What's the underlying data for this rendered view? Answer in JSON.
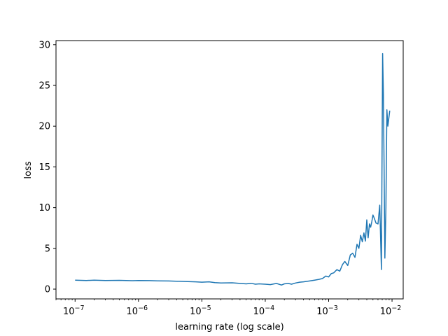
{
  "chart_data": {
    "type": "line",
    "title": "",
    "xlabel": "learning rate (log scale)",
    "ylabel": "loss",
    "x_scale": "log",
    "xlim": [
      5e-08,
      0.015
    ],
    "ylim": [
      -1.2,
      30.5
    ],
    "grid": false,
    "x_ticks": [
      {
        "value": 1e-07,
        "base": "10",
        "exp": "−7"
      },
      {
        "value": 1e-06,
        "base": "10",
        "exp": "−6"
      },
      {
        "value": 1e-05,
        "base": "10",
        "exp": "−5"
      },
      {
        "value": 0.0001,
        "base": "10",
        "exp": "−4"
      },
      {
        "value": 0.001,
        "base": "10",
        "exp": "−3"
      },
      {
        "value": 0.01,
        "base": "10",
        "exp": "−2"
      }
    ],
    "y_ticks": [
      0,
      5,
      10,
      15,
      20,
      25,
      30
    ],
    "color": "#1f77b4",
    "series": [
      {
        "x": [
          1e-07,
          1.5e-07,
          2e-07,
          3e-07,
          5e-07,
          8e-07,
          1e-06,
          1.5e-06,
          2e-06,
          3e-06,
          5e-06,
          8e-06,
          1e-05,
          1.3e-05,
          1.6e-05,
          2e-05,
          3e-05,
          4e-05,
          5e-05,
          6e-05,
          7e-05,
          8e-05,
          0.0001,
          0.00012,
          0.00015,
          0.00018,
          0.0002,
          0.00023,
          0.00026,
          0.0003,
          0.00035,
          0.0004,
          0.0005,
          0.0006,
          0.0007,
          0.0008,
          0.0009,
          0.001,
          0.0011,
          0.0012,
          0.00135,
          0.0015,
          0.00165,
          0.0018,
          0.002,
          0.0022,
          0.0024,
          0.0026,
          0.0028,
          0.003,
          0.0032,
          0.0034,
          0.0036,
          0.0038,
          0.004,
          0.0042,
          0.0044,
          0.0046,
          0.0048,
          0.005,
          0.0053,
          0.0056,
          0.006,
          0.0064,
          0.0068,
          0.0071,
          0.0073,
          0.0075,
          0.0077,
          0.008,
          0.0083,
          0.0086,
          0.0089,
          0.0092
        ],
        "y": [
          1.1,
          1.05,
          1.1,
          1.05,
          1.08,
          1.03,
          1.06,
          1.04,
          1.02,
          1.0,
          0.95,
          0.9,
          0.85,
          0.9,
          0.8,
          0.75,
          0.78,
          0.7,
          0.65,
          0.72,
          0.6,
          0.65,
          0.6,
          0.55,
          0.7,
          0.5,
          0.65,
          0.7,
          0.6,
          0.75,
          0.85,
          0.9,
          1.0,
          1.1,
          1.2,
          1.3,
          1.6,
          1.5,
          1.9,
          2.0,
          2.4,
          2.2,
          3.0,
          3.4,
          2.9,
          4.2,
          4.4,
          3.9,
          5.5,
          5.0,
          6.6,
          5.8,
          6.9,
          5.9,
          8.5,
          6.3,
          8.0,
          7.6,
          8.3,
          9.1,
          8.6,
          8.1,
          8.0,
          10.3,
          2.4,
          28.9,
          24.0,
          15.0,
          3.8,
          10.0,
          22.0,
          20.0,
          21.0,
          21.9
        ]
      }
    ]
  }
}
